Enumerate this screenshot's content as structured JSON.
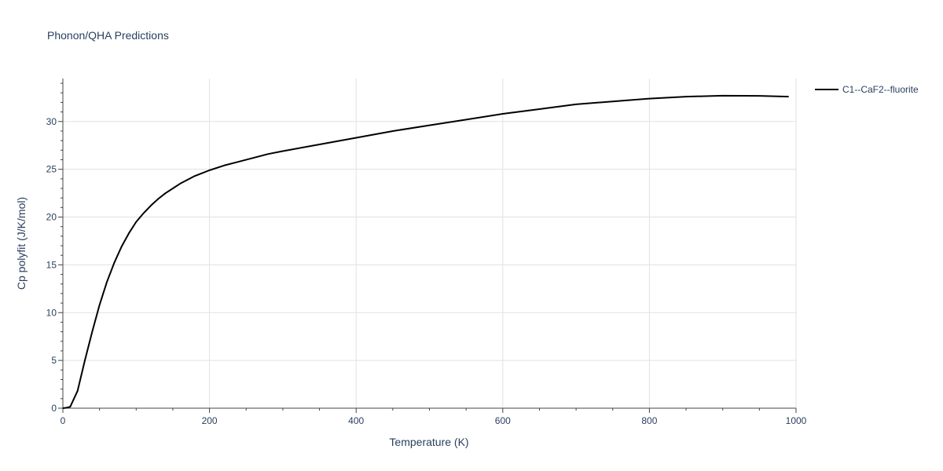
{
  "chart_data": {
    "type": "line",
    "title": "Phonon/QHA Predictions",
    "xlabel": "Temperature (K)",
    "ylabel": "Cp polyfit (J/K/mol)",
    "xlim": [
      0,
      1000
    ],
    "ylim": [
      0,
      34.5
    ],
    "x_ticks": [
      0,
      200,
      400,
      600,
      800,
      1000
    ],
    "y_ticks": [
      0,
      5,
      10,
      15,
      20,
      25,
      30
    ],
    "grid": true,
    "legend_position": "top-right",
    "series": [
      {
        "name": "C1--CaF2--fluorite",
        "color": "#000000",
        "x": [
          0,
          5,
          10,
          20,
          30,
          40,
          50,
          60,
          70,
          80,
          90,
          100,
          110,
          120,
          130,
          140,
          150,
          160,
          170,
          180,
          190,
          200,
          220,
          240,
          260,
          280,
          300,
          350,
          400,
          450,
          500,
          550,
          600,
          650,
          700,
          750,
          800,
          850,
          900,
          950,
          990
        ],
        "y": [
          0,
          0.05,
          0.15,
          1.8,
          5.0,
          8.0,
          10.8,
          13.2,
          15.2,
          16.9,
          18.3,
          19.5,
          20.4,
          21.2,
          21.9,
          22.5,
          23.0,
          23.5,
          23.9,
          24.3,
          24.6,
          24.9,
          25.4,
          25.8,
          26.2,
          26.6,
          26.9,
          27.6,
          28.3,
          29.0,
          29.6,
          30.2,
          30.8,
          31.3,
          31.8,
          32.1,
          32.4,
          32.6,
          32.7,
          32.68,
          32.6
        ]
      }
    ]
  }
}
